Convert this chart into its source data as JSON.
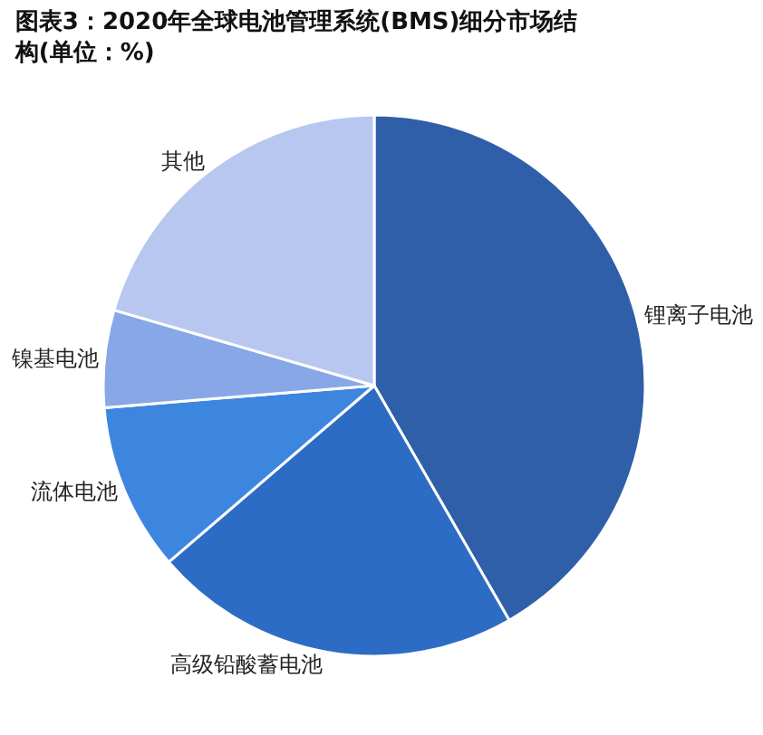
{
  "chart_data": {
    "type": "pie",
    "title": "图表3：2020年全球电池管理系统(BMS)细分市场结构(单位：%)",
    "categories": [
      "锂离子电池",
      "高级铅酸蓄电池",
      "流体电池",
      "镍基电池",
      "其他"
    ],
    "values": [
      41.7,
      22.0,
      10.0,
      5.8,
      20.5
    ],
    "colors": [
      "#2f5fa9",
      "#2c6cc4",
      "#3d86e0",
      "#88a7e6",
      "#b8c7f0"
    ],
    "legend": false
  }
}
